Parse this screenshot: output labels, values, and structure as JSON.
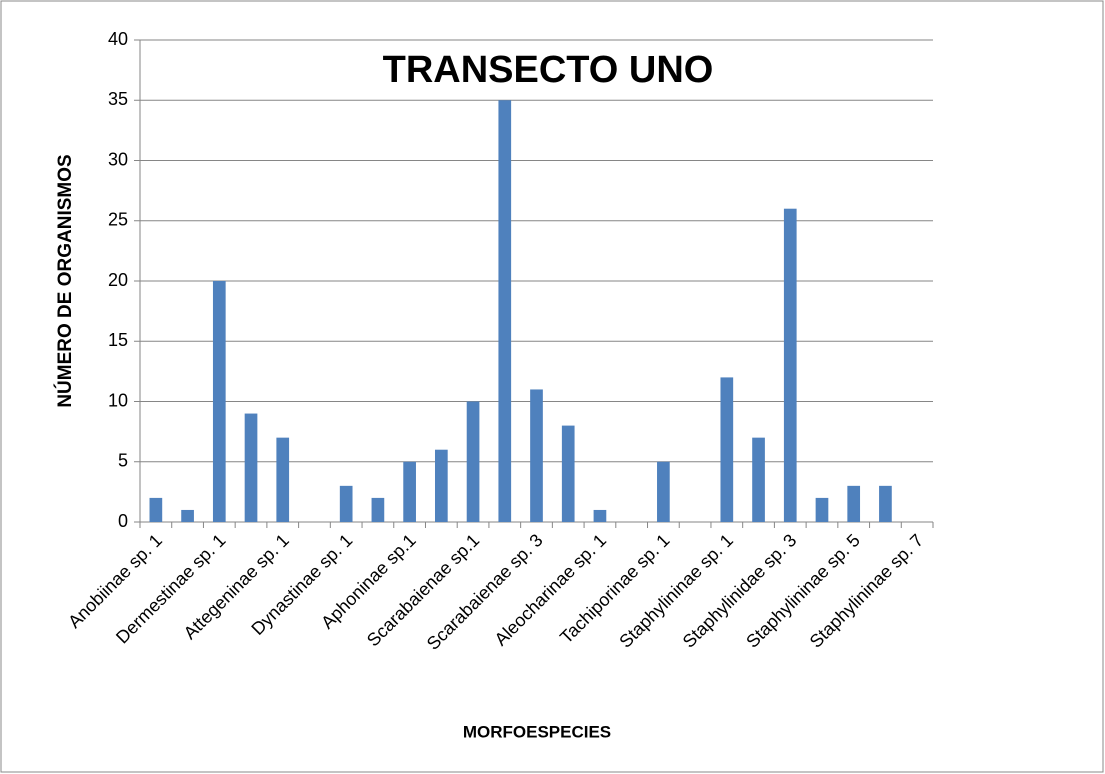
{
  "chart_data": {
    "type": "bar",
    "title": "TRANSECTO UNO",
    "x_label": "MORFOESPECIES",
    "y_label": "NÚMERO DE ORGANISMOS",
    "categories": [
      "Anobiinae sp. 1",
      null,
      "Dermestinae sp. 1",
      null,
      "Attegeninae sp. 1",
      null,
      "Dynastinae sp. 1",
      null,
      "Aphoninae sp.1",
      null,
      "Scarabaienae sp.1",
      null,
      "Scarabaienae sp. 3",
      null,
      "Aleocharinae sp. 1",
      null,
      "Tachiporinae sp. 1",
      null,
      "Staphylininae sp. 1",
      null,
      "Staphylinidae sp. 3",
      null,
      "Staphylininae sp. 5",
      null,
      "Staphylininae sp. 7"
    ],
    "values": [
      2,
      1,
      20,
      9,
      7,
      0,
      3,
      2,
      5,
      6,
      10,
      35,
      11,
      8,
      1,
      0,
      5,
      0,
      12,
      7,
      26,
      2,
      3,
      3,
      0
    ],
    "color": "#4f81bd",
    "ylim": [
      0,
      40
    ],
    "yticks": [
      0,
      5,
      10,
      15,
      20,
      25,
      30,
      35,
      40
    ],
    "grid": true
  }
}
